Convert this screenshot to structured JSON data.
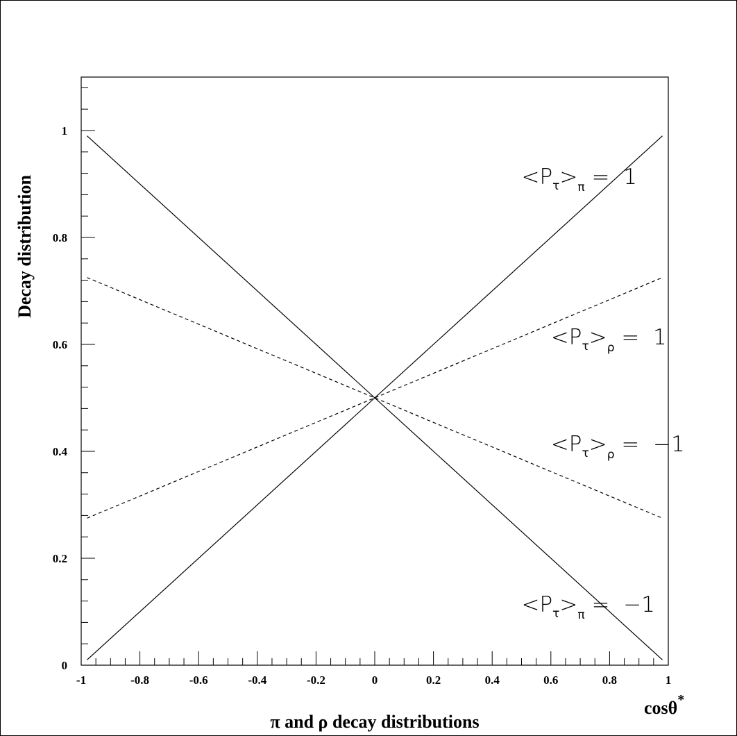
{
  "chart_data": {
    "type": "line",
    "title": "π and ρ decay distributions",
    "xlabel": "cosθ*",
    "ylabel": "Decay distribution",
    "xlim": [
      -1,
      1
    ],
    "ylim": [
      0,
      1.1
    ],
    "x_ticks": [
      "-1",
      "-0.8",
      "-0.6",
      "-0.4",
      "-0.2",
      "0",
      "0.2",
      "0.4",
      "0.6",
      "0.8",
      "1"
    ],
    "y_ticks": [
      "0",
      "0.2",
      "0.4",
      "0.6",
      "0.8",
      "1"
    ],
    "grid": false,
    "series": [
      {
        "name": "<P_τ>_π = 1",
        "style": "solid",
        "x": [
          -0.98,
          0.98
        ],
        "y": [
          0.01,
          0.99
        ]
      },
      {
        "name": "<P_τ>_π = −1",
        "style": "solid",
        "x": [
          -0.98,
          0.98
        ],
        "y": [
          0.99,
          0.01
        ]
      },
      {
        "name": "<P_τ>_ρ = 1",
        "style": "dashed",
        "x": [
          -0.98,
          0.98
        ],
        "y": [
          0.275,
          0.725
        ]
      },
      {
        "name": "<P_τ>_ρ = −1",
        "style": "dashed",
        "x": [
          -0.98,
          0.98
        ],
        "y": [
          0.725,
          0.275
        ]
      }
    ],
    "annotations": [
      {
        "main": "<P",
        "sub_tau": "τ",
        "close": ">",
        "sub_particle": "π",
        "rhs": "= 1",
        "x": 0.5,
        "y": 0.9
      },
      {
        "main": "<P",
        "sub_tau": "τ",
        "close": ">",
        "sub_particle": "ρ",
        "rhs": "= 1",
        "x": 0.6,
        "y": 0.6
      },
      {
        "main": "<P",
        "sub_tau": "τ",
        "close": ">",
        "sub_particle": "ρ",
        "rhs": "= −1",
        "x": 0.6,
        "y": 0.4
      },
      {
        "main": "<P",
        "sub_tau": "τ",
        "close": ">",
        "sub_particle": "π",
        "rhs": "= −1",
        "x": 0.5,
        "y": 0.1
      }
    ]
  }
}
